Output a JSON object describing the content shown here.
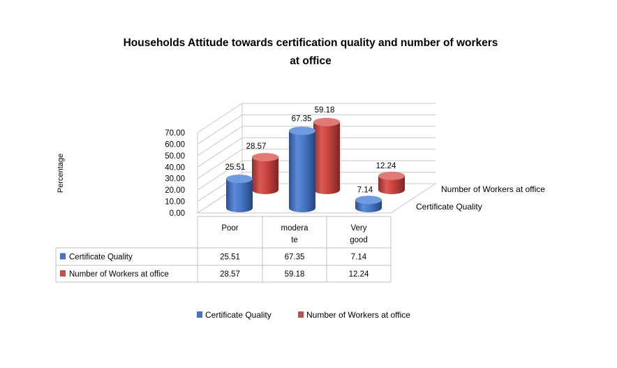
{
  "chart_data": {
    "type": "bar",
    "variant": "3d-cylinder-with-data-table",
    "title_line1": "Households Attitude towards certification quality and number of workers",
    "title_line2": "at office",
    "ylabel": "Percentage",
    "ylim": [
      0,
      70
    ],
    "y_ticks": [
      "70.00",
      "60.00",
      "50.00",
      "40.00",
      "30.00",
      "20.00",
      "10.00",
      "0.00"
    ],
    "categories": [
      "Poor",
      "modera te",
      "Very good"
    ],
    "category_lines": [
      [
        "Poor"
      ],
      [
        "modera",
        "te"
      ],
      [
        "Very",
        "good"
      ]
    ],
    "series": [
      {
        "name": "Certificate Quality",
        "values": [
          25.51,
          67.35,
          7.14
        ],
        "labels": [
          "25.51",
          "67.35",
          "7.14"
        ],
        "color": "#4472C4"
      },
      {
        "name": "Number of Workers at office",
        "values": [
          28.57,
          59.18,
          12.24
        ],
        "labels": [
          "28.57",
          "59.18",
          "12.24"
        ],
        "color": "#C0504D"
      }
    ],
    "depth_axis_labels": [
      "Certificate Quality",
      "Number of Workers at office"
    ],
    "grid": true,
    "legend_position": "bottom"
  }
}
